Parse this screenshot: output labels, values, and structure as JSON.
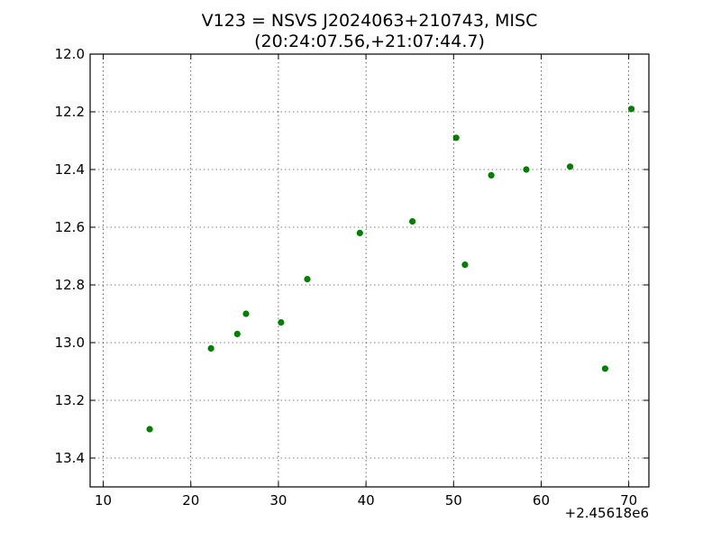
{
  "chart_data": {
    "type": "scatter",
    "title_line1": "V123 = NSVS J2024063+210743, MISC",
    "title_line2": "(20:24:07.56,+21:07:44.7)",
    "xlabel": "",
    "ylabel": "",
    "x_offset_label": "+2.45618e6",
    "xlim": [
      8.5,
      72.3
    ],
    "ylim": [
      13.5,
      12.0
    ],
    "y_inverted": true,
    "x_ticks": [
      10,
      20,
      30,
      40,
      50,
      60,
      70
    ],
    "x_tick_labels": [
      "10",
      "20",
      "30",
      "40",
      "50",
      "60",
      "70"
    ],
    "y_ticks": [
      12.0,
      12.2,
      12.4,
      12.6,
      12.8,
      13.0,
      13.2,
      13.4
    ],
    "y_tick_labels": [
      "12.0",
      "12.2",
      "12.4",
      "12.6",
      "12.8",
      "13.0",
      "13.2",
      "13.4"
    ],
    "grid": true,
    "marker_color": "#007f00",
    "series": [
      {
        "points": [
          {
            "x": 15.3,
            "y": 13.3
          },
          {
            "x": 22.3,
            "y": 13.02
          },
          {
            "x": 25.3,
            "y": 12.97
          },
          {
            "x": 26.3,
            "y": 12.9
          },
          {
            "x": 30.3,
            "y": 12.93
          },
          {
            "x": 33.3,
            "y": 12.78
          },
          {
            "x": 39.3,
            "y": 12.62
          },
          {
            "x": 45.3,
            "y": 12.58
          },
          {
            "x": 50.3,
            "y": 12.29
          },
          {
            "x": 51.3,
            "y": 12.73
          },
          {
            "x": 54.3,
            "y": 12.42
          },
          {
            "x": 58.3,
            "y": 12.4
          },
          {
            "x": 63.3,
            "y": 12.39
          },
          {
            "x": 67.3,
            "y": 13.09
          },
          {
            "x": 70.3,
            "y": 12.19
          }
        ]
      }
    ]
  }
}
